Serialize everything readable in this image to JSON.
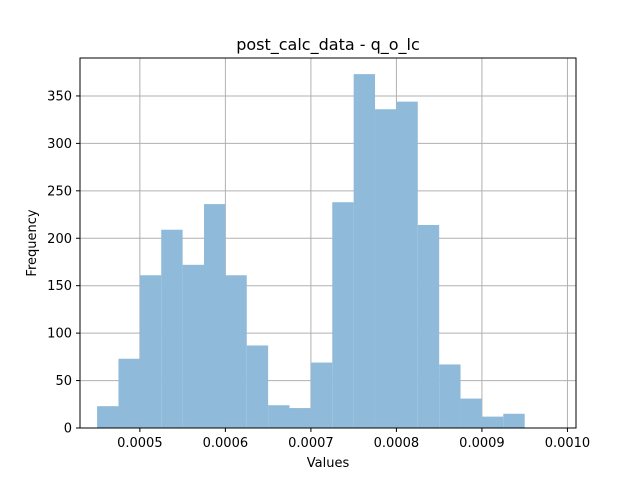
{
  "chart_data": {
    "type": "bar",
    "title": "post_calc_data - q_o_lc",
    "xlabel": "Values",
    "ylabel": "Frequency",
    "xlim": [
      0.00043,
      0.00101
    ],
    "ylim": [
      0,
      390
    ],
    "xticks": [
      0.0005,
      0.0006,
      0.0007,
      0.0008,
      0.0009,
      0.001
    ],
    "xtick_labels": [
      "0.0005",
      "0.0006",
      "0.0007",
      "0.0008",
      "0.0009",
      "0.0010"
    ],
    "yticks": [
      0,
      50,
      100,
      150,
      200,
      250,
      300,
      350
    ],
    "ytick_labels": [
      "0",
      "50",
      "100",
      "150",
      "200",
      "250",
      "300",
      "350"
    ],
    "grid": true,
    "bar_color": "#8fbad9",
    "bins": [
      [
        0.00045,
        0.000475,
        23
      ],
      [
        0.000475,
        0.0005,
        73
      ],
      [
        0.0005,
        0.000525,
        161
      ],
      [
        0.000525,
        0.00055,
        209
      ],
      [
        0.00055,
        0.000575,
        172
      ],
      [
        0.000575,
        0.0006,
        236
      ],
      [
        0.0006,
        0.000625,
        161
      ],
      [
        0.000625,
        0.00065,
        87
      ],
      [
        0.00065,
        0.000675,
        24
      ],
      [
        0.000675,
        0.0007,
        21
      ],
      [
        0.0007,
        0.000725,
        69
      ],
      [
        0.000725,
        0.00075,
        238
      ],
      [
        0.00075,
        0.000775,
        373
      ],
      [
        0.000775,
        0.0008,
        336
      ],
      [
        0.0008,
        0.000825,
        344
      ],
      [
        0.000825,
        0.00085,
        214
      ],
      [
        0.00085,
        0.000875,
        67
      ],
      [
        0.000875,
        0.0009,
        31
      ],
      [
        0.0009,
        0.000925,
        12
      ],
      [
        0.000925,
        0.00095,
        15
      ]
    ]
  }
}
